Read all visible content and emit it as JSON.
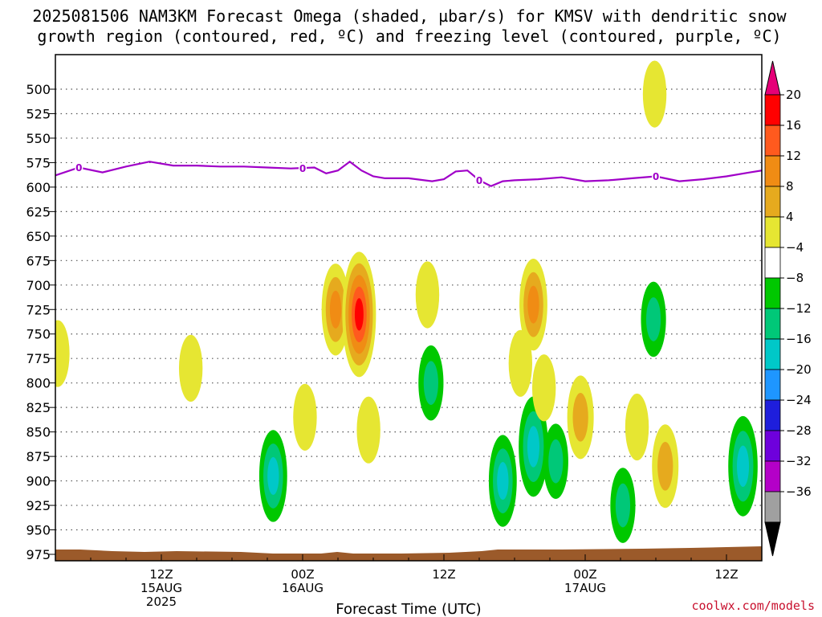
{
  "title": {
    "line1": "2025081506 NAM3KM Forecast Omega (shaded, µbar/s) for KMSV with dendritic snow",
    "line2": "growth region (contoured, red, ºC) and freezing level (contoured, purple, ºC)"
  },
  "credit": "coolwx.com/models",
  "colors": {
    "freezing_line": "#a000c8",
    "ground": "#9b5a2a",
    "grid": "#555555"
  },
  "chart_data": {
    "type": "heatmap",
    "title": "2025081506 NAM3KM Forecast Omega (shaded, µbar/s) for KMSV with dendritic snow growth region (contoured, red, ºC) and freezing level (contoured, purple, ºC)",
    "xlabel": "Forecast Time (UTC)",
    "ylabel": "",
    "x_range_hours": [
      -3,
      57
    ],
    "y_axis": "pressure (hPa), inverted",
    "ylim": [
      480,
      980
    ],
    "y_ticks": [
      500,
      525,
      550,
      575,
      600,
      625,
      650,
      675,
      700,
      725,
      750,
      775,
      800,
      825,
      850,
      875,
      900,
      925,
      950,
      975
    ],
    "x_ticks": [
      {
        "hour": 6,
        "label": "12Z",
        "sub1": "15AUG",
        "sub2": "2025"
      },
      {
        "hour": 18,
        "label": "00Z",
        "sub1": "16AUG",
        "sub2": ""
      },
      {
        "hour": 30,
        "label": "12Z",
        "sub1": "",
        "sub2": ""
      },
      {
        "hour": 42,
        "label": "00Z",
        "sub1": "17AUG",
        "sub2": ""
      },
      {
        "hour": 54,
        "label": "12Z",
        "sub1": "",
        "sub2": ""
      }
    ],
    "grid": "dotted horizontal",
    "colorbar": {
      "labels": [
        "20",
        "16",
        "12",
        "8",
        "4",
        "-4",
        "-8",
        "-12",
        "-16",
        "-20",
        "-24",
        "-28",
        "-32",
        "-36"
      ],
      "colors": [
        "#ff0000",
        "#ff5a1e",
        "#f08c14",
        "#e6aa1e",
        "#e6e632",
        "#ffffff",
        "#00c800",
        "#00c878",
        "#00c8c8",
        "#1e96ff",
        "#1e1edc",
        "#6e00dc",
        "#b400c8",
        "#a0a0a0"
      ],
      "top_arrow_color": "#e60078",
      "bottom_arrow_color": "#000000"
    },
    "freezing_level": {
      "label": "0",
      "hours": [
        -3,
        -1,
        1,
        3,
        5,
        7,
        9,
        11,
        13,
        15,
        17,
        19,
        20,
        21,
        22,
        23,
        24,
        25,
        27,
        29,
        30,
        31,
        32,
        33,
        34,
        35,
        36,
        38,
        40,
        42,
        44,
        46,
        48,
        50,
        52,
        54,
        56,
        57
      ],
      "pressure": [
        588,
        580,
        585,
        579,
        574,
        578,
        578,
        579,
        579,
        580,
        581,
        580,
        586,
        583,
        574,
        583,
        589,
        591,
        591,
        594,
        592,
        584,
        583,
        593,
        599,
        594,
        593,
        592,
        590,
        594,
        593,
        591,
        589,
        594,
        592,
        589,
        585,
        583
      ]
    },
    "omega_cells": [
      {
        "hour": -2.8,
        "p": 770,
        "value": 6
      },
      {
        "hour": 8.5,
        "p": 785,
        "value": 6
      },
      {
        "hour": 15.5,
        "p": 895,
        "value": -12
      },
      {
        "hour": 18.2,
        "p": 835,
        "value": 6
      },
      {
        "hour": 20.8,
        "p": 725,
        "value": 12
      },
      {
        "hour": 22.8,
        "p": 730,
        "value": 20
      },
      {
        "hour": 23.6,
        "p": 848,
        "value": 6
      },
      {
        "hour": 28.6,
        "p": 710,
        "value": 6
      },
      {
        "hour": 28.9,
        "p": 800,
        "value": -8
      },
      {
        "hour": 35.0,
        "p": 900,
        "value": -12
      },
      {
        "hour": 36.5,
        "p": 780,
        "value": 6
      },
      {
        "hour": 37.6,
        "p": 720,
        "value": 12
      },
      {
        "hour": 37.6,
        "p": 865,
        "value": -14
      },
      {
        "hour": 38.5,
        "p": 805,
        "value": 6
      },
      {
        "hour": 39.5,
        "p": 880,
        "value": -8
      },
      {
        "hour": 41.6,
        "p": 835,
        "value": 10
      },
      {
        "hour": 45.2,
        "p": 925,
        "value": -8
      },
      {
        "hour": 46.4,
        "p": 845,
        "value": 6
      },
      {
        "hour": 47.8,
        "p": 735,
        "value": -8
      },
      {
        "hour": 47.9,
        "p": 505,
        "value": 6
      },
      {
        "hour": 48.8,
        "p": 885,
        "value": 10
      },
      {
        "hour": 55.4,
        "p": 885,
        "value": -14
      }
    ]
  }
}
